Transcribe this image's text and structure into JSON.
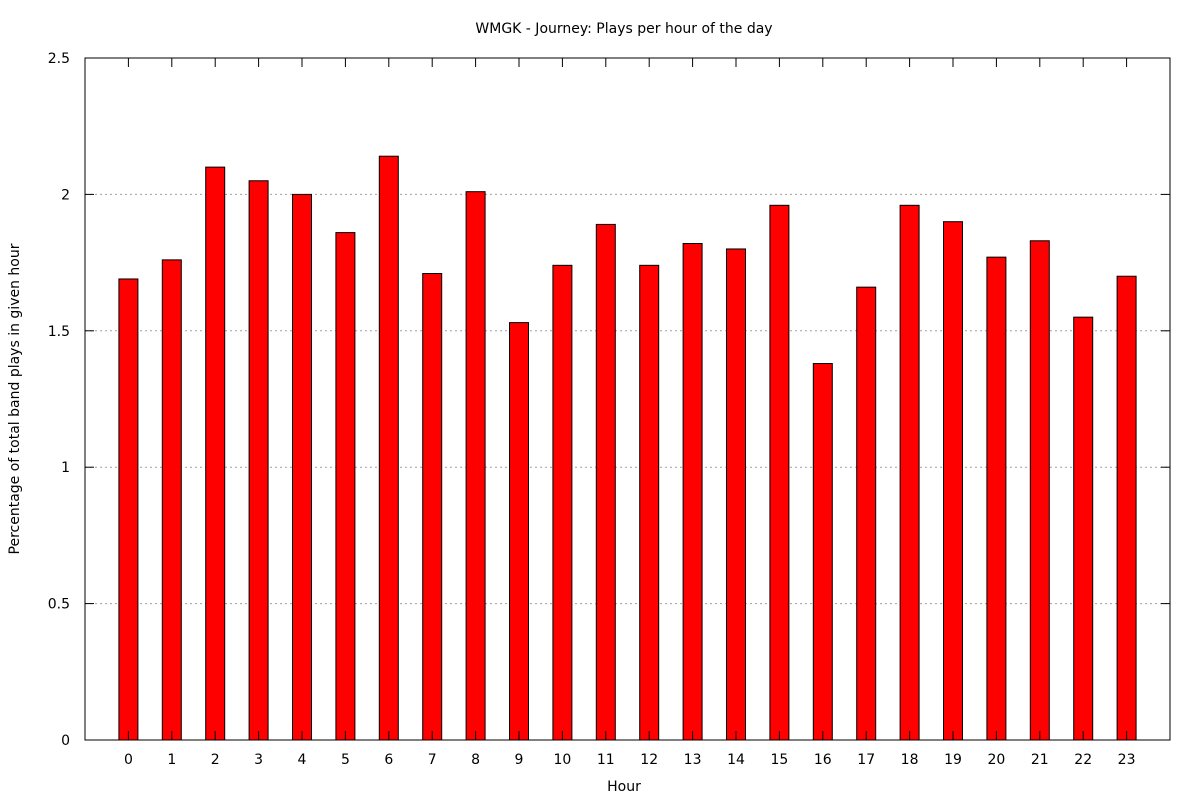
{
  "chart_data": {
    "type": "bar",
    "title": "WMGK - Journey: Plays per hour of the day",
    "xlabel": "Hour",
    "ylabel": "Percentage of total band plays in given hour",
    "categories": [
      "0",
      "1",
      "2",
      "3",
      "4",
      "5",
      "6",
      "7",
      "8",
      "9",
      "10",
      "11",
      "12",
      "13",
      "14",
      "15",
      "16",
      "17",
      "18",
      "19",
      "20",
      "21",
      "22",
      "23"
    ],
    "values": [
      1.69,
      1.76,
      2.1,
      2.05,
      2.0,
      1.86,
      2.14,
      1.71,
      2.01,
      1.53,
      1.74,
      1.89,
      1.74,
      1.82,
      1.8,
      1.96,
      1.38,
      1.66,
      1.96,
      1.9,
      1.77,
      1.83,
      1.55,
      1.7
    ],
    "ylim": [
      0,
      2.5
    ],
    "yticks": [
      0,
      0.5,
      1,
      1.5,
      2,
      2.5
    ],
    "ytick_labels": [
      "0",
      "0.5",
      "1",
      "1.5",
      "2",
      "2.5"
    ],
    "grid": "horizontal dotted",
    "legend": "none",
    "colors": {
      "bar_fill": "#ff0000",
      "bar_stroke": "#000000",
      "grid": "#a0a0a0"
    }
  }
}
